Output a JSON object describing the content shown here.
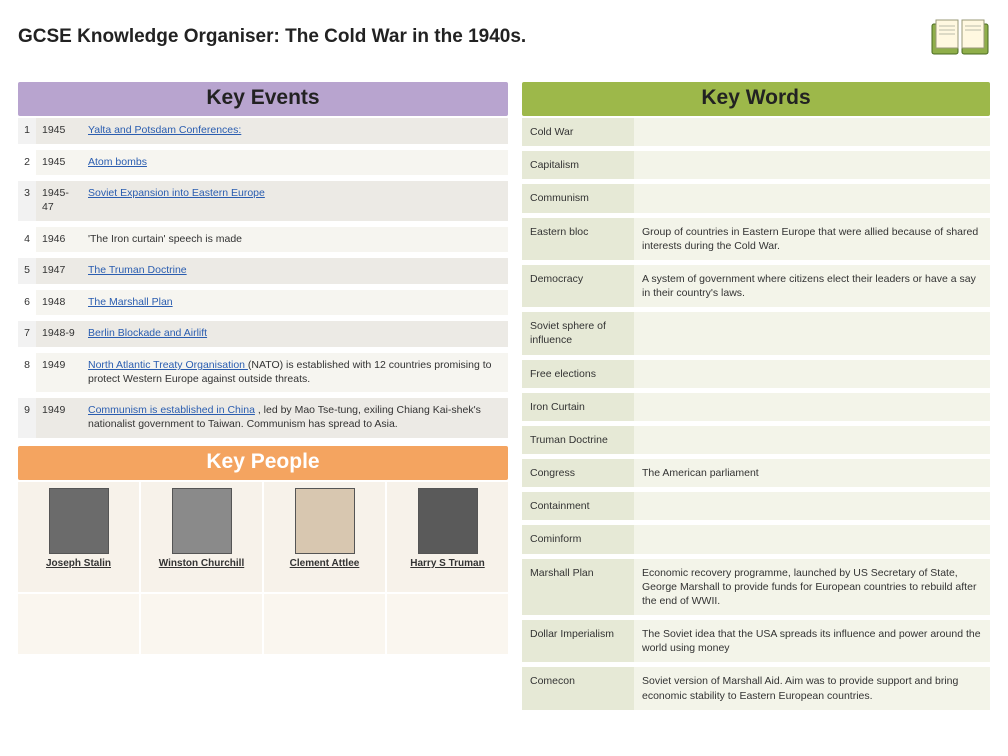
{
  "title": "GCSE Knowledge Organiser:  The Cold War in the 1940s.",
  "sections": {
    "events": "Key Events",
    "words": "Key Words",
    "people": "Key People"
  },
  "events": [
    {
      "n": "1",
      "year": "1945",
      "desc": "Yalta and Potsdam Conferences:",
      "link": true,
      "trail": ""
    },
    {
      "n": "2",
      "year": "1945",
      "desc": "Atom bombs",
      "link": true,
      "trail": ""
    },
    {
      "n": "3",
      "year": "1945-47",
      "desc": "Soviet Expansion into Eastern Europe",
      "link": true,
      "trail": ""
    },
    {
      "n": "4",
      "year": "1946",
      "desc": "'The Iron curtain' speech is made",
      "link": false,
      "trail": ""
    },
    {
      "n": "5",
      "year": "1947",
      "desc": "The Truman Doctrine",
      "link": true,
      "trail": ""
    },
    {
      "n": "6",
      "year": "1948",
      "desc": "The Marshall Plan",
      "link": true,
      "trail": ""
    },
    {
      "n": "7",
      "year": "1948-9",
      "desc": "Berlin Blockade and Airlift",
      "link": true,
      "trail": ""
    },
    {
      "n": "8",
      "year": "1949",
      "desc": "North Atlantic Treaty Organisation ",
      "link": true,
      "trail": "(NATO) is established with 12 countries promising to protect Western Europe against outside threats."
    },
    {
      "n": "9",
      "year": "1949",
      "desc": "Communism is established in China",
      "link": true,
      "trail": " , led by Mao Tse-tung, exiling Chiang Kai-shek's nationalist government to Taiwan. Communism has spread to Asia."
    }
  ],
  "words": [
    {
      "term": "Cold War",
      "def": ""
    },
    {
      "term": "Capitalism",
      "def": ""
    },
    {
      "term": "Communism",
      "def": ""
    },
    {
      "term": "Eastern bloc",
      "def": "Group of countries in Eastern Europe that were allied because of shared interests during the Cold War."
    },
    {
      "term": "Democracy",
      "def": "A system of government where citizens elect their leaders or have a say in their country's laws."
    },
    {
      "term": "Soviet sphere of influence",
      "def": ""
    },
    {
      "term": "Free elections",
      "def": ""
    },
    {
      "term": "Iron Curtain",
      "def": ""
    },
    {
      "term": "Truman Doctrine",
      "def": ""
    },
    {
      "term": "Congress",
      "def": "The American parliament"
    },
    {
      "term": "Containment",
      "def": ""
    },
    {
      "term": "Cominform",
      "def": ""
    },
    {
      "term": "Marshall Plan",
      "def": "Economic recovery programme, launched by US Secretary of State, George Marshall to provide funds for European countries to rebuild after the end of WWII."
    },
    {
      "term": "Dollar Imperialism",
      "def": "The Soviet idea that the USA spreads its influence and power around the world using money"
    },
    {
      "term": "Comecon",
      "def": "Soviet version of Marshall Aid. Aim was to provide support and bring economic stability to Eastern European countries."
    }
  ],
  "people": [
    {
      "name": "Joseph Stalin",
      "ph": "#6b6b6b"
    },
    {
      "name": "Winston Churchill",
      "ph": "#8a8a8a"
    },
    {
      "name": "Clement Attlee",
      "ph": "#d8c7b0"
    },
    {
      "name": "Harry S Truman",
      "ph": "#5a5a5a"
    }
  ],
  "colors": {
    "events_header": "#b8a4cf",
    "words_header": "#9db84a",
    "people_header": "#f4a460",
    "link": "#2a5db0"
  }
}
